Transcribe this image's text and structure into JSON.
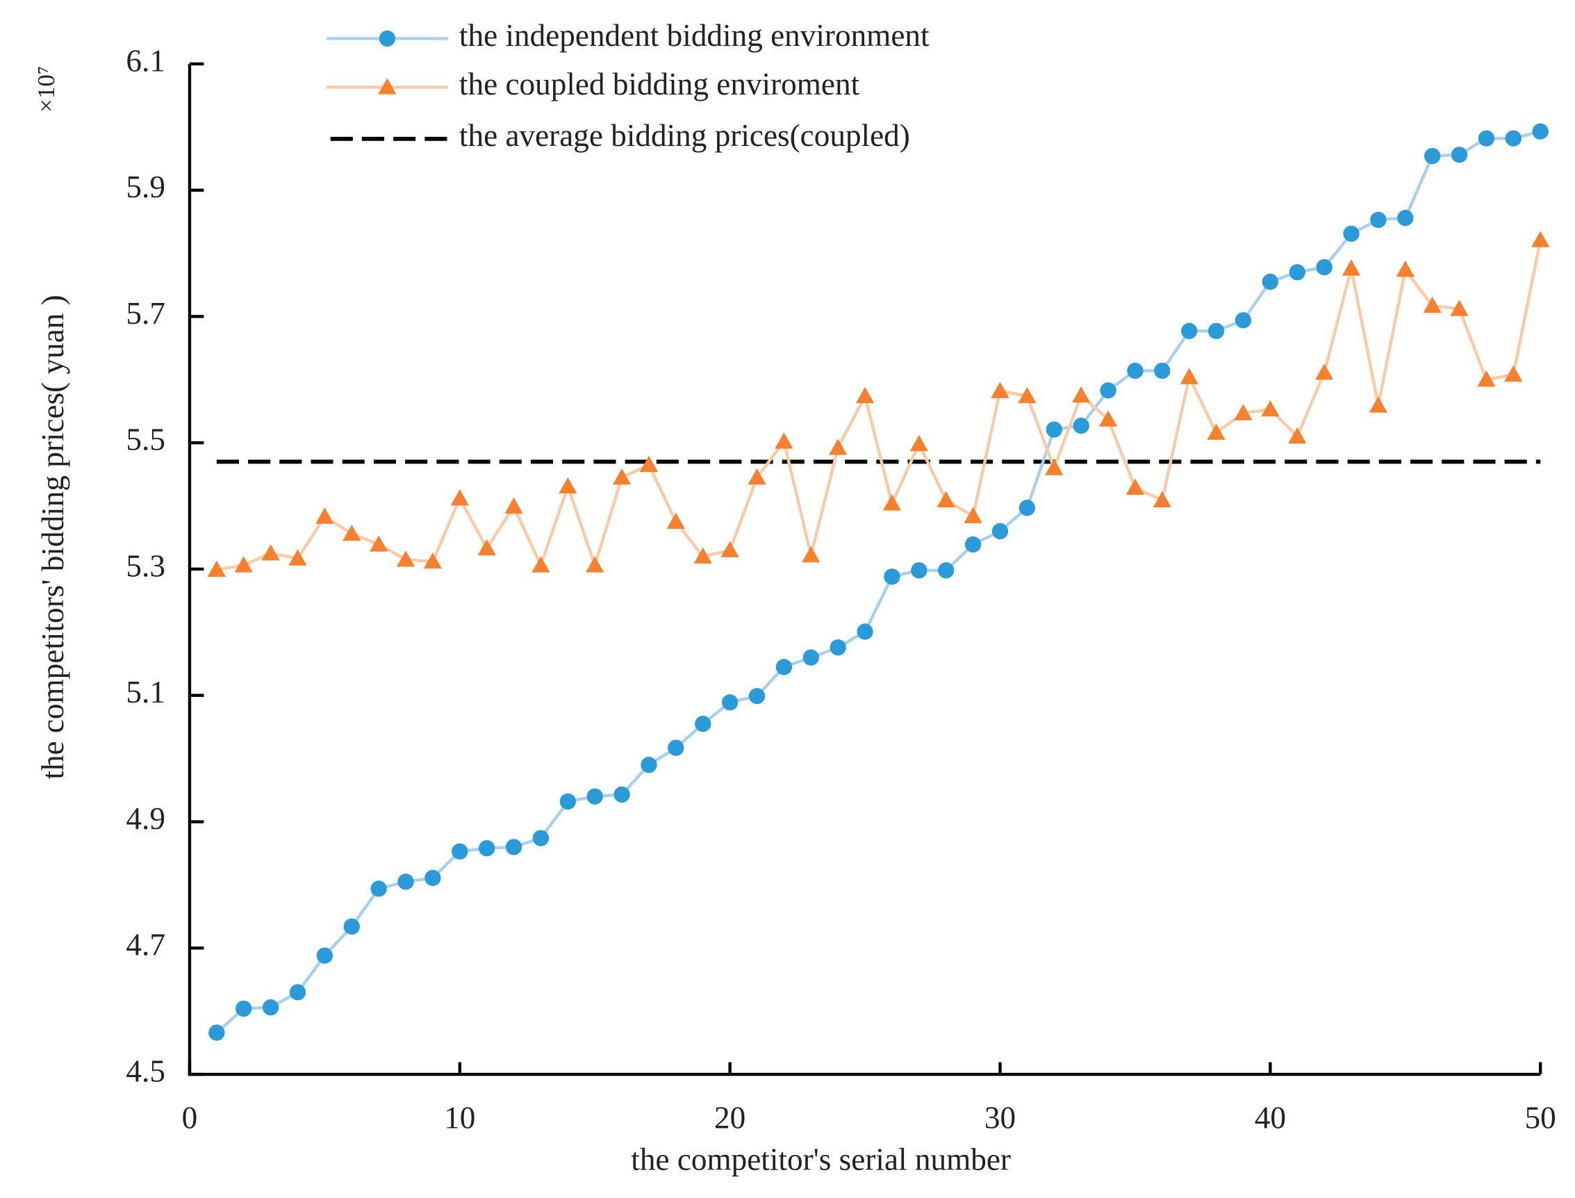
{
  "chart_data": {
    "type": "line",
    "x_label": "the competitor's serial number",
    "y_label": "the competitors' bidding prices( yuan )",
    "y_multiplier": "×10⁷",
    "x": [
      1,
      2,
      3,
      4,
      5,
      6,
      7,
      8,
      9,
      10,
      11,
      12,
      13,
      14,
      15,
      16,
      17,
      18,
      19,
      20,
      21,
      22,
      23,
      24,
      25,
      26,
      27,
      28,
      29,
      30,
      31,
      32,
      33,
      34,
      35,
      36,
      37,
      38,
      39,
      40,
      41,
      42,
      43,
      44,
      45,
      46,
      47,
      48,
      49,
      50
    ],
    "series": [
      {
        "name": "the independent bidding environment",
        "color": "#2a9ad8",
        "line_color": "#a9cfee",
        "marker": "circle",
        "values": [
          4.566,
          4.604,
          4.606,
          4.63,
          4.688,
          4.734,
          4.794,
          4.805,
          4.811,
          4.853,
          4.858,
          4.86,
          4.874,
          4.932,
          4.94,
          4.943,
          4.99,
          5.017,
          5.055,
          5.089,
          5.099,
          5.145,
          5.16,
          5.176,
          5.201,
          5.288,
          5.298,
          5.298,
          5.339,
          5.36,
          5.397,
          5.521,
          5.527,
          5.583,
          5.614,
          5.614,
          5.677,
          5.677,
          5.694,
          5.755,
          5.77,
          5.778,
          5.831,
          5.853,
          5.856,
          5.954,
          5.956,
          5.982,
          5.982,
          5.993
        ]
      },
      {
        "name": "the coupled bidding enviroment",
        "color": "#f5812e",
        "line_color": "#f9caa6",
        "marker": "triangle",
        "values": [
          5.299,
          5.306,
          5.325,
          5.317,
          5.383,
          5.356,
          5.339,
          5.315,
          5.312,
          5.412,
          5.333,
          5.399,
          5.306,
          5.431,
          5.306,
          5.445,
          5.465,
          5.375,
          5.32,
          5.33,
          5.445,
          5.502,
          5.322,
          5.492,
          5.574,
          5.404,
          5.498,
          5.409,
          5.384,
          5.582,
          5.574,
          5.46,
          5.575,
          5.537,
          5.429,
          5.409,
          5.604,
          5.516,
          5.547,
          5.553,
          5.51,
          5.611,
          5.776,
          5.559,
          5.774,
          5.717,
          5.712,
          5.6,
          5.608,
          5.821
        ]
      }
    ],
    "average": {
      "name": "the average bidding prices(coupled)",
      "value": 5.47,
      "color": "#000000"
    },
    "xlim": [
      0,
      50
    ],
    "xticks": [
      0,
      10,
      20,
      30,
      40,
      50
    ],
    "ylim": [
      4.5,
      6.1
    ],
    "yticks": [
      4.5,
      4.7,
      4.9,
      5.1,
      5.3,
      5.5,
      5.7,
      5.9,
      6.1
    ],
    "grid": false
  }
}
